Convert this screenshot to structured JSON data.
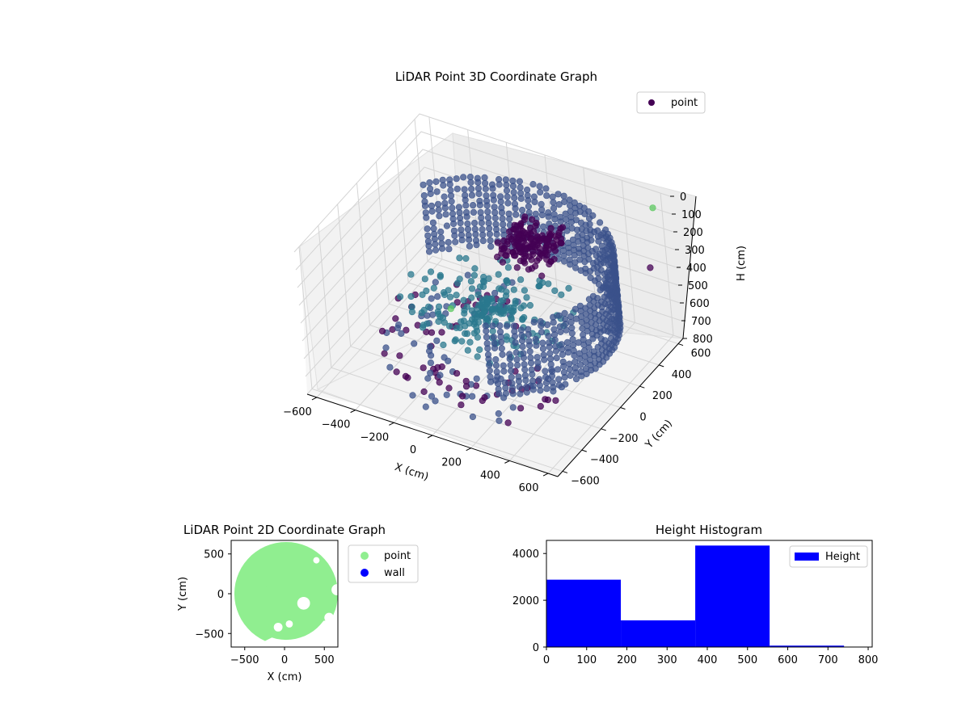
{
  "colors": {
    "point3d_top": "#440154",
    "point3d_low": "#3b528b",
    "point3d_mid": "#2a788e",
    "point3d_outlier": "#5ec962",
    "point2d": "#90ee90",
    "wall": "#0000ff",
    "hist": "#0000ff"
  },
  "chart_data": [
    {
      "type": "scatter3d",
      "title": "LiDAR Point 3D Coordinate Graph",
      "xlabel": "X (cm)",
      "ylabel": "Y (cm)",
      "zlabel": "H (cm)",
      "xlim": [
        -650,
        650
      ],
      "ylim": [
        -650,
        650
      ],
      "zlim": [
        0,
        800
      ],
      "z_inverted": true,
      "xticks": [
        -600,
        -400,
        -200,
        0,
        200,
        400,
        600
      ],
      "yticks": [
        -600,
        -400,
        -200,
        0,
        200,
        400,
        600
      ],
      "zticks": [
        0,
        100,
        200,
        300,
        400,
        500,
        600,
        700,
        800
      ],
      "legend": {
        "labels": [
          "point"
        ],
        "position": "top-right"
      },
      "grid": true,
      "series": [
        {
          "name": "point",
          "description_points": [
            {
              "x": -200,
              "y": -150,
              "h": 350
            },
            {
              "x": 0,
              "y": 150,
              "h": 320
            },
            {
              "x": 200,
              "y": 200,
              "h": 520
            },
            {
              "x": 350,
              "y": 450,
              "h": 550
            },
            {
              "x": -350,
              "y": 0,
              "h": 550
            },
            {
              "x": 150,
              "y": 650,
              "h": 640
            },
            {
              "x": 160,
              "y": -650,
              "h": 40
            }
          ]
        }
      ]
    },
    {
      "type": "scatter",
      "title": "LiDAR Point 2D Coordinate Graph",
      "xlabel": "X (cm)",
      "ylabel": "Y (cm)",
      "xlim": [
        -670,
        670
      ],
      "ylim": [
        -670,
        670
      ],
      "xticks": [
        -500,
        0,
        500
      ],
      "yticks": [
        -500,
        0,
        500
      ],
      "legend": {
        "labels": [
          "point",
          "wall"
        ],
        "position": "outside-right"
      },
      "series": [
        {
          "name": "point",
          "shape": "filled disc region, radius ~650 cm, x from -580 to 650"
        },
        {
          "name": "wall",
          "values": []
        }
      ]
    },
    {
      "type": "bar",
      "title": "Height Histogram",
      "xlabel": "",
      "ylabel": "",
      "xlim": [
        0,
        810
      ],
      "ylim": [
        0,
        4560
      ],
      "xticks": [
        0,
        100,
        200,
        300,
        400,
        500,
        600,
        700,
        800
      ],
      "yticks": [
        0,
        2000,
        4000
      ],
      "legend": {
        "labels": [
          "Height"
        ],
        "position": "top-right"
      },
      "series": [
        {
          "name": "Height",
          "bins": [
            0,
            185,
            370,
            555,
            740
          ],
          "values": [
            2880,
            1140,
            4340,
            60
          ]
        }
      ]
    }
  ]
}
